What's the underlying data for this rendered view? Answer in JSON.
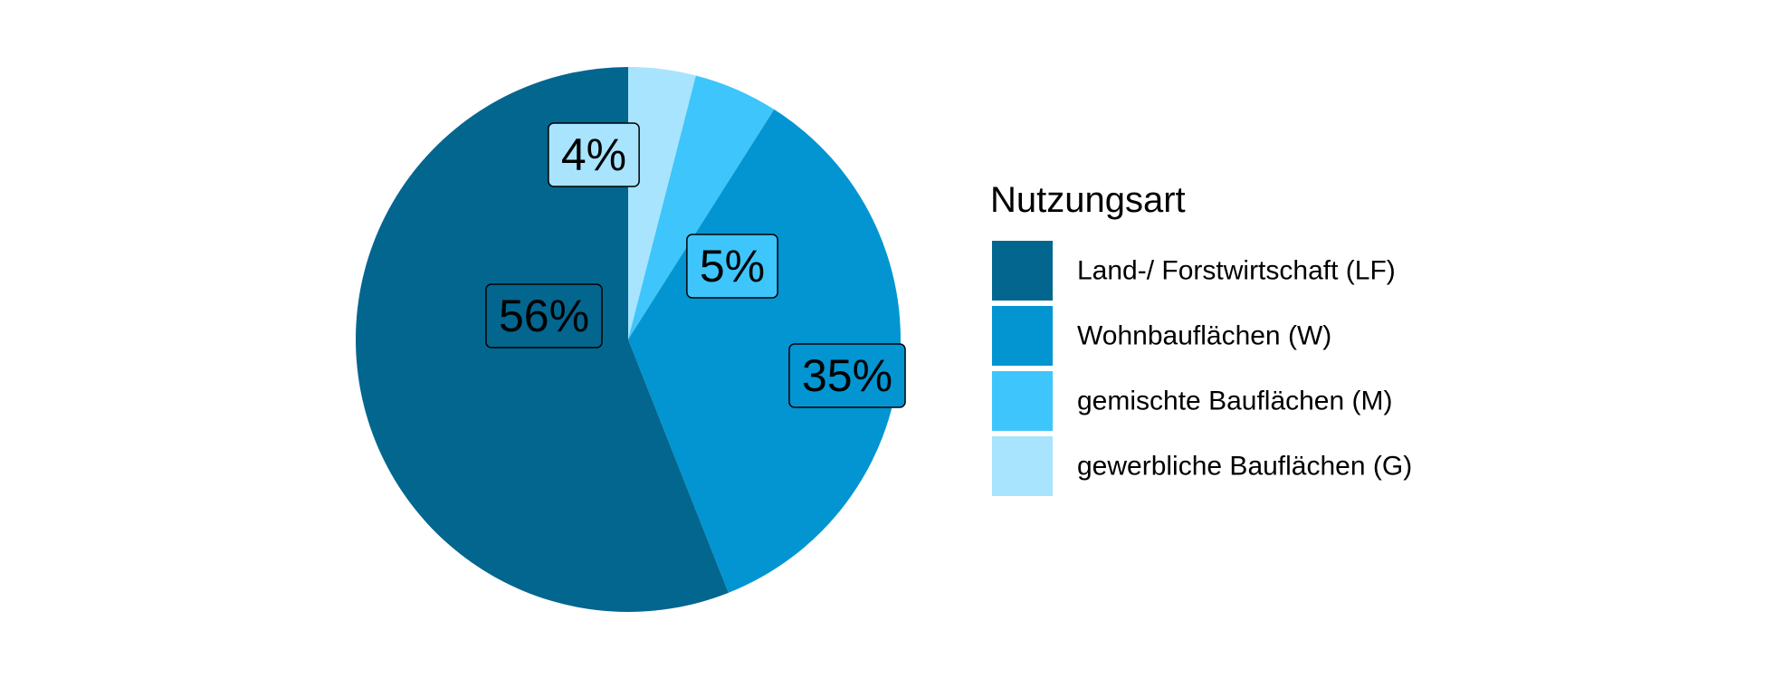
{
  "chart_data": {
    "type": "pie",
    "legend_title": "Nutzungsart",
    "categories": [
      "Land-/ Forstwirtschaft (LF)",
      "Wohnbauflächen (W)",
      "gemischte Bauflächen (M)",
      "gewerbliche Bauflächen (G)"
    ],
    "values": [
      56,
      35,
      5,
      4
    ],
    "value_labels": [
      "56%",
      "35%",
      "5%",
      "4%"
    ],
    "colors": [
      "#02668f",
      "#0295d1",
      "#3ec5fb",
      "#a8e4fd"
    ],
    "legend_position": "right"
  }
}
